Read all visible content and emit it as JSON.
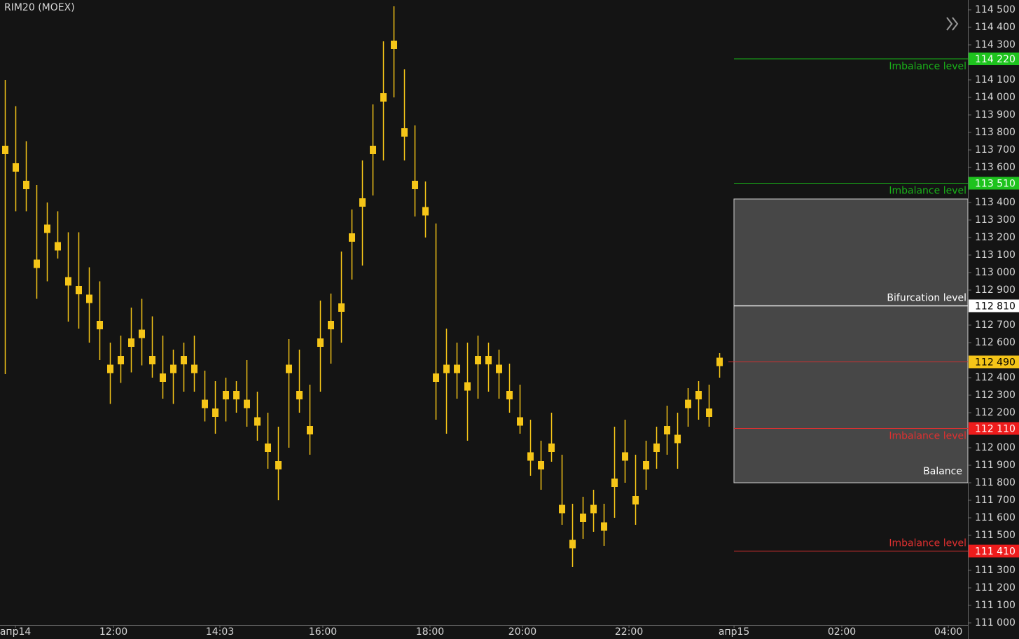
{
  "chart_data": {
    "type": "candlestick",
    "title": "RIM20 (MOEX)",
    "colors": {
      "background": "#141414",
      "candle": "#f5c518",
      "axis": "#6a6a6a",
      "text": "#d8d8d8"
    },
    "high": [
      114100,
      113950,
      113750,
      113500,
      113400,
      113350,
      113230,
      113230,
      113030,
      112950,
      112600,
      112640,
      112800,
      112850,
      112750,
      112640,
      112560,
      112600,
      112640,
      112440,
      112380,
      112400,
      112380,
      112500,
      112320,
      112200,
      112120,
      112620,
      112560,
      112360,
      112840,
      112880,
      113120,
      113360,
      113640,
      113960,
      114320,
      114520,
      114160,
      113840,
      113520,
      113280,
      112680,
      112600,
      112600,
      112640,
      112600,
      112560,
      112480,
      112360,
      112160,
      112040,
      112200,
      111960,
      111680,
      111720,
      111760,
      111680,
      112120,
      112160,
      111960,
      112040,
      112120,
      112240,
      112200,
      112340,
      112380,
      112360,
      112540
    ],
    "low": [
      112420,
      113350,
      113350,
      112850,
      112950,
      113080,
      112720,
      112680,
      112600,
      112500,
      112250,
      112370,
      112430,
      112470,
      112400,
      112280,
      112250,
      112320,
      112320,
      112150,
      112080,
      112150,
      112200,
      112120,
      112040,
      111880,
      111700,
      112000,
      112200,
      111960,
      112320,
      112480,
      112600,
      112960,
      113040,
      113440,
      113640,
      114000,
      113640,
      113320,
      113200,
      112160,
      112080,
      112280,
      112040,
      112280,
      112320,
      112280,
      112200,
      112080,
      111840,
      111760,
      111920,
      111560,
      111320,
      111480,
      111520,
      111440,
      111600,
      111800,
      111560,
      111760,
      111880,
      111960,
      111880,
      112120,
      112160,
      112120,
      112400
    ],
    "close": [
      113700,
      113600,
      113500,
      113050,
      113250,
      113150,
      112950,
      112900,
      112850,
      112700,
      112450,
      112500,
      112600,
      112650,
      112500,
      112400,
      112450,
      112500,
      112450,
      112250,
      112200,
      112300,
      112300,
      112250,
      112150,
      112000,
      111900,
      112450,
      112300,
      112100,
      112600,
      112700,
      112800,
      113200,
      113400,
      113700,
      114000,
      114300,
      113800,
      113500,
      113350,
      112400,
      112450,
      112450,
      112350,
      112500,
      112500,
      112450,
      112300,
      112150,
      111950,
      111900,
      112000,
      111650,
      111450,
      111600,
      111650,
      111550,
      111800,
      111950,
      111700,
      111900,
      112000,
      112100,
      112050,
      112250,
      112300,
      112200,
      112490
    ],
    "xlim": [
      0,
      92.13
    ],
    "xticks": [
      {
        "value": 1.47,
        "label": "апр14"
      },
      {
        "value": 10.8,
        "label": "12:00"
      },
      {
        "value": 20.93,
        "label": "14:03"
      },
      {
        "value": 30.73,
        "label": "16:00"
      },
      {
        "value": 40.93,
        "label": "18:00"
      },
      {
        "value": 49.73,
        "label": "20:00"
      },
      {
        "value": 59.87,
        "label": "22:00"
      },
      {
        "value": 69.87,
        "label": "апр15"
      },
      {
        "value": 80.13,
        "label": "02:00"
      },
      {
        "value": 90.27,
        "label": "04:00"
      }
    ],
    "ylim": [
      111000,
      114500
    ],
    "yticks": [
      {
        "value": 114500,
        "label": "114 500"
      },
      {
        "value": 114400,
        "label": "114 400"
      },
      {
        "value": 114300,
        "label": "114 300"
      },
      {
        "value": 114100,
        "label": "114 100"
      },
      {
        "value": 114000,
        "label": "114 000"
      },
      {
        "value": 113900,
        "label": "113 900"
      },
      {
        "value": 113800,
        "label": "113 800"
      },
      {
        "value": 113700,
        "label": "113 700"
      },
      {
        "value": 113600,
        "label": "113 600"
      },
      {
        "value": 113400,
        "label": "113 400"
      },
      {
        "value": 113300,
        "label": "113 300"
      },
      {
        "value": 113200,
        "label": "113 200"
      },
      {
        "value": 113100,
        "label": "113 100"
      },
      {
        "value": 113000,
        "label": "113 000"
      },
      {
        "value": 112900,
        "label": "112 900"
      },
      {
        "value": 112700,
        "label": "112 700"
      },
      {
        "value": 112600,
        "label": "112 600"
      },
      {
        "value": 112400,
        "label": "112 400"
      },
      {
        "value": 112300,
        "label": "112 300"
      },
      {
        "value": 112200,
        "label": "112 200"
      },
      {
        "value": 112000,
        "label": "112 000"
      },
      {
        "value": 111900,
        "label": "111 900"
      },
      {
        "value": 111800,
        "label": "111 800"
      },
      {
        "value": 111700,
        "label": "111 700"
      },
      {
        "value": 111600,
        "label": "111 600"
      },
      {
        "value": 111500,
        "label": "111 500"
      },
      {
        "value": 111300,
        "label": "111 300"
      },
      {
        "value": 111200,
        "label": "111 200"
      },
      {
        "value": 111100,
        "label": "111 100"
      },
      {
        "value": 111000,
        "label": "111 000"
      }
    ],
    "balance": {
      "label": "Balance",
      "top": 113420,
      "bottom": 111800,
      "color": "#474747"
    },
    "levels": [
      {
        "label": "Imbalance level",
        "value": 114220,
        "value_label": "114 220",
        "color": "#19b319",
        "badge_color": "#1ec31e",
        "badge_text": "#ffffff",
        "label_position": "below"
      },
      {
        "label": "Imbalance level",
        "value": 113510,
        "value_label": "113 510",
        "color": "#19b319",
        "badge_color": "#1ec31e",
        "badge_text": "#ffffff",
        "label_position": "below"
      },
      {
        "label": "Bifurcation level",
        "value": 112810,
        "value_label": "112 810",
        "color": "#e8e8e8",
        "badge_color": "#ffffff",
        "badge_text": "#000000",
        "label_position": "above"
      },
      {
        "label": "Imbalance level",
        "value": 112110,
        "value_label": "112 110",
        "color": "#e03030",
        "badge_color": "#ee1c1c",
        "badge_text": "#ffffff",
        "label_position": "below"
      },
      {
        "label": "Imbalance level",
        "value": 111410,
        "value_label": "111 410",
        "color": "#e03030",
        "badge_color": "#ee1c1c",
        "badge_text": "#ffffff",
        "label_position": "above"
      }
    ],
    "last_price": {
      "value": 112490,
      "value_label": "112 490",
      "color": "#d03030",
      "badge_color": "#f5c518",
      "badge_text": "#000000"
    }
  }
}
